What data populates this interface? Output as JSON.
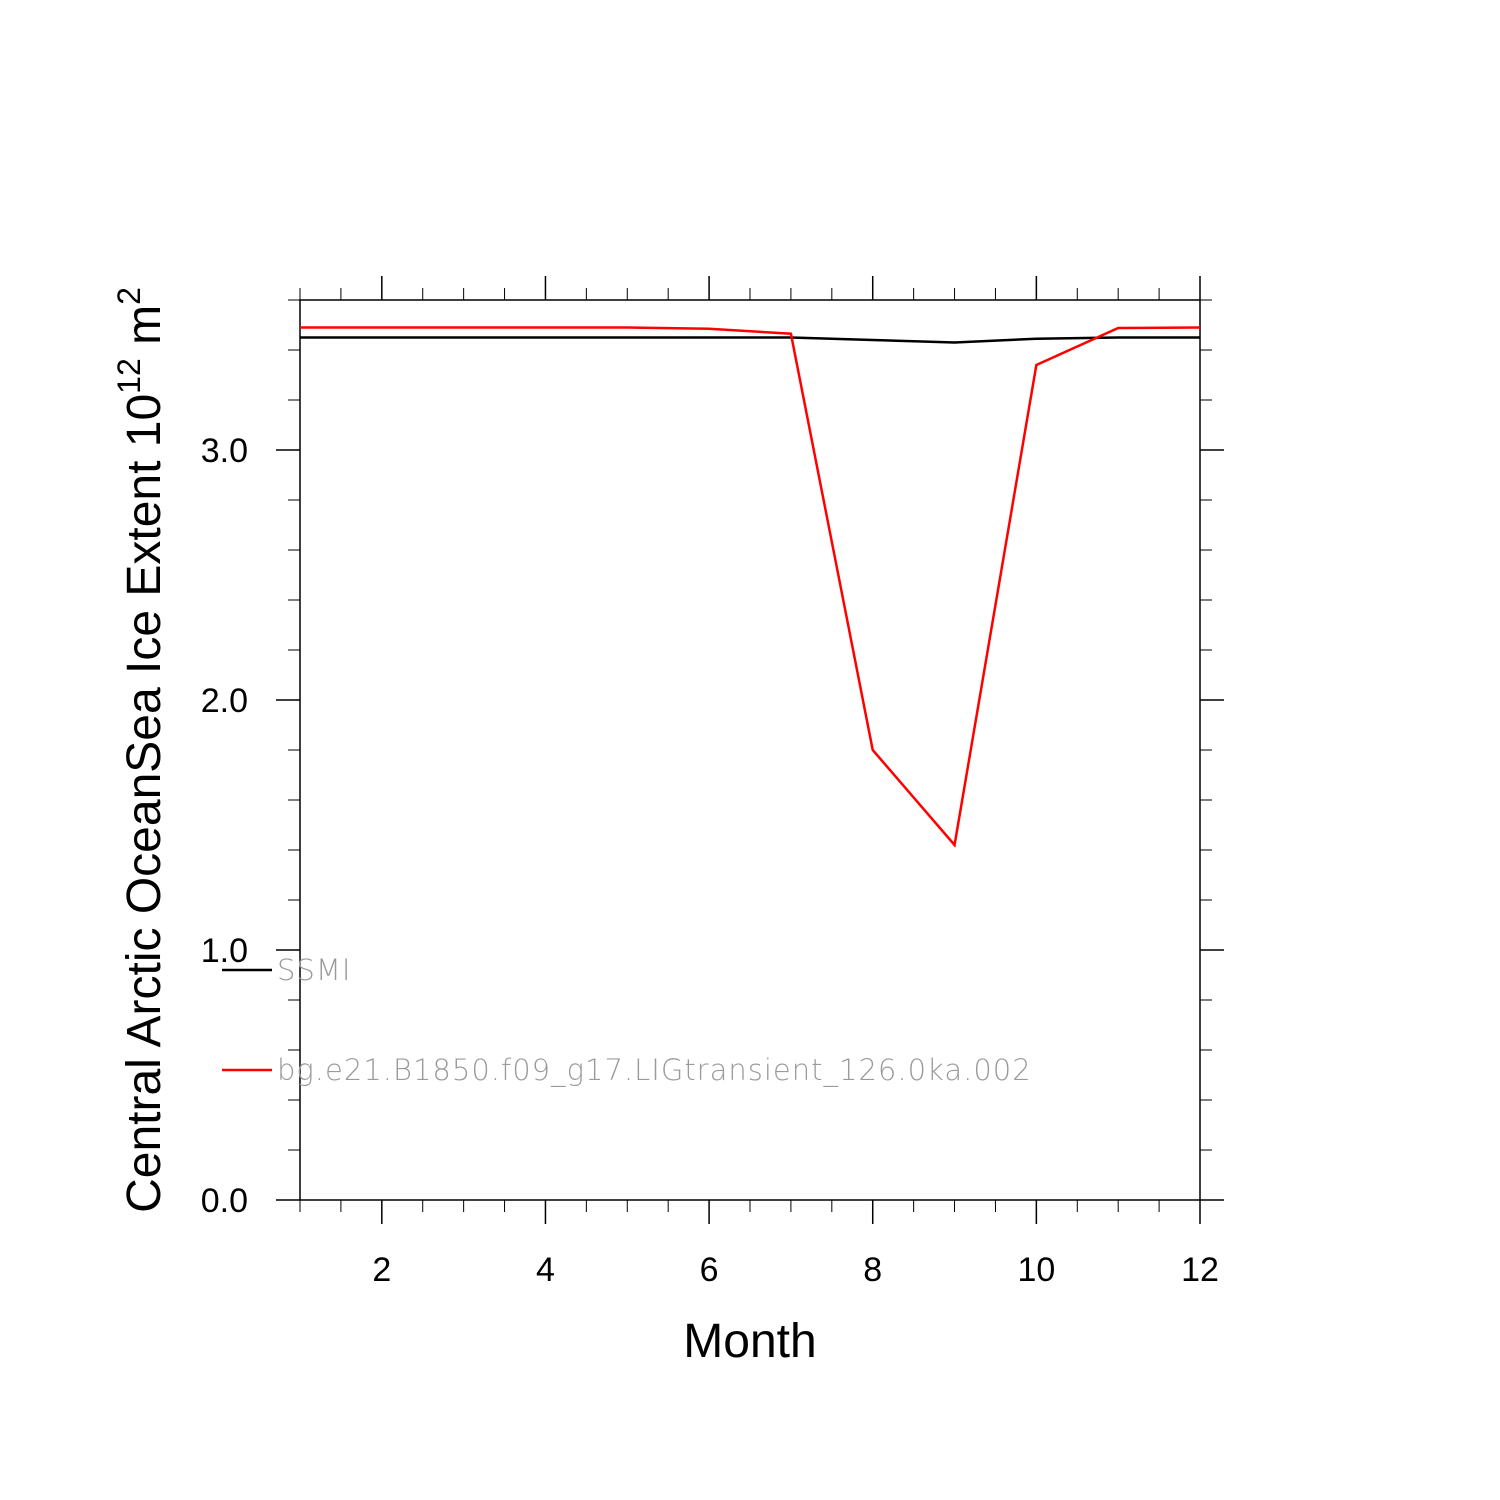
{
  "chart_data": {
    "type": "line",
    "xlabel": "Month",
    "ylabel": {
      "text": "Central Arctic OceanSea Ice Extent 10",
      "superscript": "12",
      "unit": " m",
      "unit_superscript": "2"
    },
    "xlim": [
      1,
      12
    ],
    "ylim": [
      0,
      3.6
    ],
    "x_ticks": [
      2,
      4,
      6,
      8,
      10,
      12
    ],
    "x_tick_labels": [
      "2",
      "4",
      "6",
      "8",
      "10",
      "12"
    ],
    "y_ticks": [
      0,
      1,
      2,
      3
    ],
    "y_tick_labels": [
      "0.0",
      "1.0",
      "2.0",
      "3.0"
    ],
    "x": [
      1,
      2,
      3,
      4,
      5,
      6,
      7,
      8,
      9,
      10,
      11,
      12
    ],
    "series": [
      {
        "name": "SSMI",
        "color": "#000000",
        "values": [
          3.45,
          3.45,
          3.45,
          3.45,
          3.45,
          3.45,
          3.45,
          3.44,
          3.43,
          3.445,
          3.45,
          3.45
        ]
      },
      {
        "name": "bg.e21.B1850.f09_g17.LIGtransient_126.0ka.002",
        "color": "#ff0000",
        "values": [
          3.49,
          3.49,
          3.49,
          3.49,
          3.49,
          3.485,
          3.465,
          1.8,
          1.42,
          3.34,
          3.488,
          3.49
        ]
      }
    ],
    "legend_position": "bottom-left",
    "grid": false
  }
}
